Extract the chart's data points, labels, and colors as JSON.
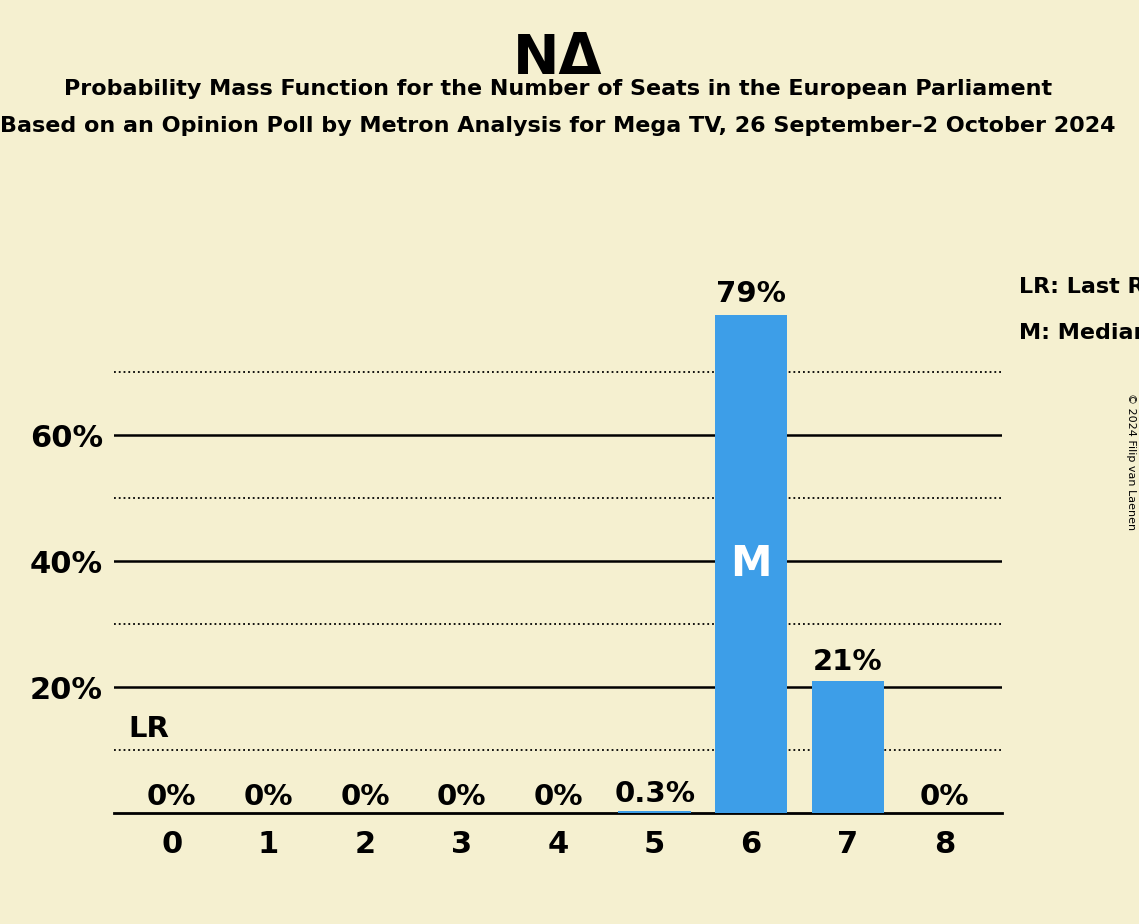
{
  "title": "NΔ",
  "subtitle1": "Probability Mass Function for the Number of Seats in the European Parliament",
  "subtitle2": "Based on an Opinion Poll by Metron Analysis for Mega TV, 26 September–2 October 2024",
  "copyright": "© 2024 Filip van Laenen",
  "seats": [
    0,
    1,
    2,
    3,
    4,
    5,
    6,
    7,
    8
  ],
  "probabilities": [
    0.0,
    0.0,
    0.0,
    0.0,
    0.0,
    0.003,
    0.79,
    0.21,
    0.0
  ],
  "bar_labels": [
    "0%",
    "0%",
    "0%",
    "0%",
    "0%",
    "0.3%",
    "79%",
    "21%",
    "0%"
  ],
  "median_seat": 6,
  "lr_level": 0.1,
  "bar_color": "#3d9ee8",
  "background_color": "#f5f0d0",
  "dotted_lines": [
    0.1,
    0.3,
    0.5,
    0.7
  ],
  "solid_lines": [
    0.2,
    0.4,
    0.6
  ],
  "ylim": [
    0,
    0.88
  ],
  "legend_lr_text": "LR: Last Result",
  "legend_m_text": "M: Median",
  "lr_annotation": "LR",
  "m_annotation": "M",
  "ytick_positions": [
    0.0,
    0.2,
    0.4,
    0.6
  ],
  "ytick_labels": [
    "",
    "20%",
    "40%",
    "60%"
  ]
}
